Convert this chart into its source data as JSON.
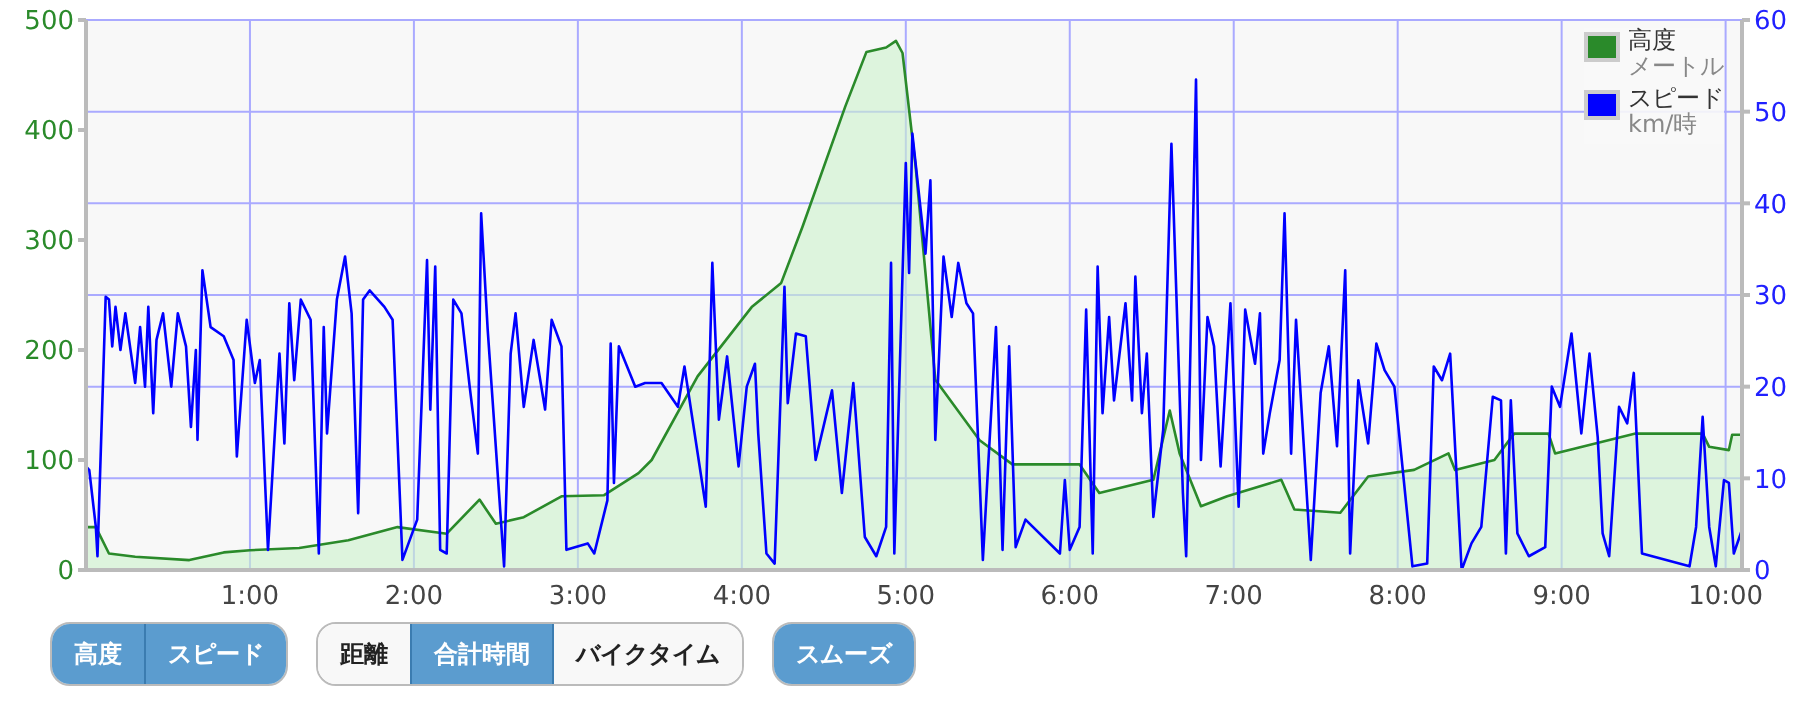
{
  "chart_data": {
    "type": "area",
    "xlim": [
      0,
      10.1
    ],
    "xticks": [
      {
        "value": 1,
        "label": "1:00"
      },
      {
        "value": 2,
        "label": "2:00"
      },
      {
        "value": 3,
        "label": "3:00"
      },
      {
        "value": 4,
        "label": "4:00"
      },
      {
        "value": 5,
        "label": "5:00"
      },
      {
        "value": 6,
        "label": "6:00"
      },
      {
        "value": 7,
        "label": "7:00"
      },
      {
        "value": 8,
        "label": "8:00"
      },
      {
        "value": 9,
        "label": "9:00"
      },
      {
        "value": 10,
        "label": "10:00"
      }
    ],
    "ylim": [
      0,
      500
    ],
    "yticks": [
      0,
      100,
      200,
      300,
      400,
      500
    ],
    "y2lim": [
      0,
      60
    ],
    "y2ticks": [
      0,
      10,
      20,
      30,
      40,
      50,
      60
    ],
    "grid": true,
    "legend": "top right",
    "marker": "none",
    "annotations": [
      "高度",
      "スピード",
      "距離",
      "合計時間",
      "バイクタイム",
      "スムーズ",
      "メートル",
      "km/時"
    ],
    "series": [
      {
        "name": "高度",
        "color": "#2a8a2a",
        "x": [
          0,
          0.06,
          0.14,
          0.3,
          0.63,
          0.84,
          1.0,
          1.3,
          1.6,
          1.9,
          2.2,
          2.4,
          2.5,
          2.67,
          2.9,
          3.16,
          3.37,
          3.45,
          3.73,
          4.06,
          4.24,
          4.37,
          4.63,
          4.76,
          4.88,
          4.94,
          4.98,
          5.06,
          5.18,
          5.45,
          5.65,
          6.06,
          6.18,
          6.51,
          6.61,
          6.67,
          6.8,
          6.96,
          7.29,
          7.37,
          7.65,
          7.82,
          8.1,
          8.31,
          8.35,
          8.59,
          8.71,
          8.92,
          8.96,
          9.45,
          9.86,
          9.9,
          10.02,
          10.04,
          10.1
        ],
        "values": [
          39,
          39,
          15,
          12,
          9,
          16,
          18,
          20,
          27,
          39,
          33,
          64,
          42,
          48,
          67,
          68,
          88,
          100,
          176,
          239,
          261,
          312,
          421,
          471,
          475,
          481,
          470,
          367,
          173,
          118,
          96,
          96,
          70,
          82,
          145,
          106,
          58,
          67,
          82,
          55,
          52,
          85,
          91,
          106,
          91,
          100,
          124,
          124,
          106,
          124,
          124,
          112,
          109,
          123,
          123
        ]
      },
      {
        "name": "スピード",
        "type": "line",
        "axis": "y2",
        "color": "#0000ff",
        "x": [
          0,
          0.02,
          0.06,
          0.07,
          0.12,
          0.14,
          0.16,
          0.18,
          0.21,
          0.24,
          0.3,
          0.33,
          0.36,
          0.38,
          0.41,
          0.43,
          0.47,
          0.52,
          0.56,
          0.61,
          0.64,
          0.67,
          0.68,
          0.71,
          0.76,
          0.84,
          0.9,
          0.92,
          0.98,
          1.03,
          1.06,
          1.11,
          1.18,
          1.21,
          1.24,
          1.27,
          1.31,
          1.37,
          1.42,
          1.45,
          1.47,
          1.53,
          1.58,
          1.62,
          1.66,
          1.69,
          1.73,
          1.82,
          1.87,
          1.93,
          2.02,
          2.08,
          2.1,
          2.13,
          2.16,
          2.2,
          2.24,
          2.29,
          2.34,
          2.39,
          2.41,
          2.45,
          2.55,
          2.59,
          2.62,
          2.67,
          2.73,
          2.8,
          2.84,
          2.9,
          2.93,
          3.06,
          3.1,
          3.18,
          3.2,
          3.22,
          3.25,
          3.35,
          3.41,
          3.51,
          3.61,
          3.65,
          3.78,
          3.82,
          3.86,
          3.91,
          3.98,
          4.03,
          4.08,
          4.1,
          4.15,
          4.2,
          4.26,
          4.28,
          4.33,
          4.39,
          4.45,
          4.55,
          4.61,
          4.68,
          4.75,
          4.82,
          4.88,
          4.91,
          4.93,
          5.0,
          5.02,
          5.04,
          5.12,
          5.15,
          5.18,
          5.23,
          5.28,
          5.32,
          5.37,
          5.41,
          5.47,
          5.55,
          5.59,
          5.63,
          5.67,
          5.73,
          5.94,
          5.97,
          6.0,
          6.06,
          6.1,
          6.14,
          6.17,
          6.2,
          6.24,
          6.27,
          6.34,
          6.38,
          6.4,
          6.44,
          6.47,
          6.51,
          6.57,
          6.62,
          6.69,
          6.71,
          6.77,
          6.8,
          6.84,
          6.88,
          6.92,
          6.98,
          7.03,
          7.07,
          7.13,
          7.16,
          7.18,
          7.22,
          7.28,
          7.31,
          7.35,
          7.38,
          7.47,
          7.53,
          7.58,
          7.63,
          7.68,
          7.71,
          7.76,
          7.82,
          7.87,
          7.92,
          7.98,
          8.09,
          8.18,
          8.22,
          8.27,
          8.32,
          8.39,
          8.45,
          8.51,
          8.58,
          8.63,
          8.66,
          8.69,
          8.73,
          8.8,
          8.9,
          8.94,
          8.99,
          9.06,
          9.12,
          9.17,
          9.22,
          9.25,
          9.29,
          9.35,
          9.4,
          9.44,
          9.49,
          9.78,
          9.82,
          9.86,
          9.9,
          9.94,
          9.99,
          10.02,
          10.05,
          10.1
        ],
        "values": [
          11.3,
          10.9,
          4.7,
          1.5,
          29.8,
          29.5,
          24.4,
          28.7,
          24,
          28,
          20.4,
          26.5,
          20,
          28.7,
          17.1,
          25.1,
          28,
          20,
          28,
          24.4,
          15.6,
          24,
          14.2,
          32.7,
          26.5,
          25.5,
          22.9,
          12.4,
          27.3,
          20.4,
          22.9,
          2.2,
          23.6,
          13.8,
          29.1,
          20.7,
          29.5,
          27.3,
          1.8,
          26.5,
          14.9,
          29.5,
          34.2,
          28,
          6.2,
          29.5,
          30.5,
          28.7,
          27.3,
          1.1,
          5.5,
          33.8,
          17.5,
          33.1,
          2.2,
          1.8,
          29.5,
          28,
          20,
          12.7,
          38.9,
          26.2,
          0.4,
          23.6,
          28,
          17.8,
          25.1,
          17.5,
          27.3,
          24.4,
          2.2,
          2.9,
          1.8,
          7.6,
          24.7,
          9.5,
          24.4,
          20,
          20.4,
          20.4,
          17.8,
          22.2,
          6.9,
          33.5,
          16.4,
          23.3,
          11.3,
          20,
          22.5,
          14.9,
          1.8,
          0.7,
          30.9,
          18.2,
          25.8,
          25.5,
          12,
          19.6,
          8.4,
          20.4,
          3.6,
          1.5,
          4.7,
          33.5,
          1.8,
          44.4,
          32.4,
          47.6,
          34.5,
          42.5,
          14.2,
          34.2,
          27.6,
          33.5,
          29.1,
          28,
          1.1,
          26.5,
          2.2,
          24.4,
          2.5,
          5.5,
          1.8,
          9.8,
          2.2,
          4.7,
          28.4,
          1.8,
          33.1,
          17.1,
          27.6,
          18.5,
          29.1,
          18.5,
          32,
          17.1,
          23.6,
          5.8,
          15.3,
          46.5,
          8.4,
          1.5,
          53.5,
          12,
          27.6,
          24.4,
          11.3,
          29.1,
          6.9,
          28.4,
          22.5,
          28,
          12.7,
          17.1,
          22.9,
          38.9,
          12.7,
          27.3,
          1.1,
          19.3,
          24.4,
          13.5,
          32.7,
          1.8,
          20.7,
          13.8,
          24.7,
          21.8,
          20,
          0.4,
          0.7,
          22.2,
          20.7,
          23.6,
          0,
          2.9,
          4.7,
          18.9,
          18.5,
          1.8,
          18.5,
          4,
          1.5,
          2.5,
          20,
          17.8,
          25.8,
          14.9,
          23.6,
          14.5,
          4,
          1.5,
          17.8,
          16,
          21.5,
          1.8,
          0.4,
          4.7,
          16.7,
          4.7,
          0.4,
          9.8,
          9.5,
          1.8,
          4.4
        ]
      }
    ]
  }
}
